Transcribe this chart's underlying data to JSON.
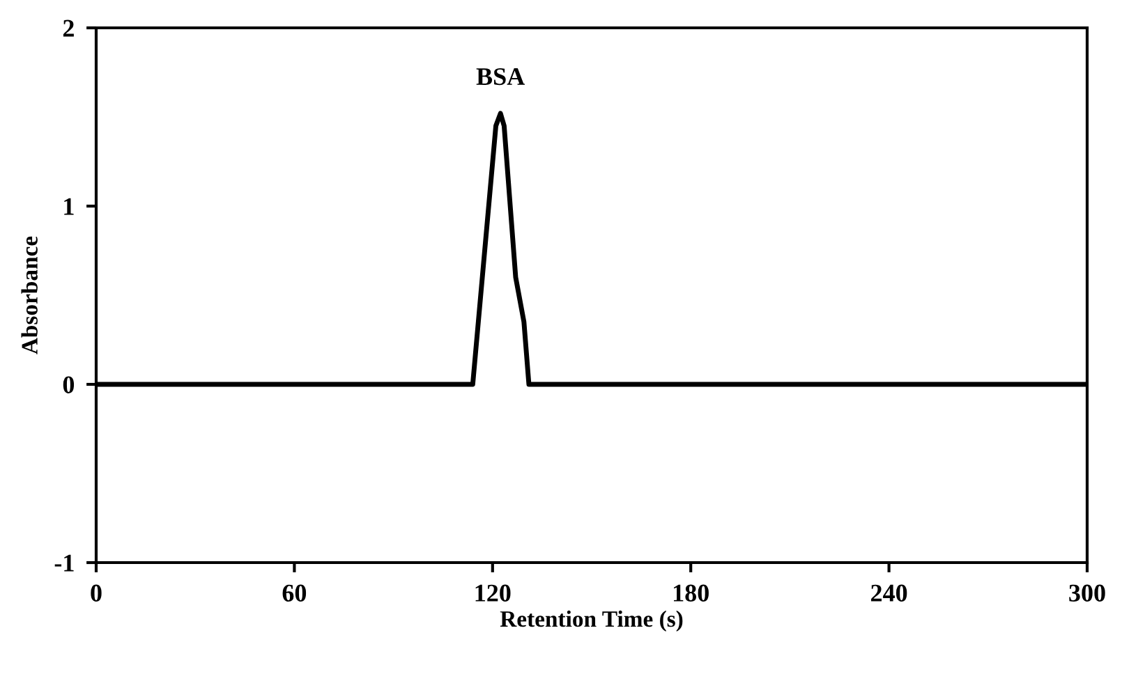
{
  "chart_data": {
    "type": "line",
    "xlabel": "Retention Time (s)",
    "ylabel": "Absorbance",
    "x": [
      0,
      60,
      114,
      121,
      122.4,
      123.5,
      127,
      129.5,
      131,
      180,
      240,
      300
    ],
    "series": [
      {
        "color": "#000000",
        "values": [
          0,
          0,
          0,
          1.45,
          1.52,
          1.45,
          0.6,
          0.35,
          0,
          0,
          0,
          0
        ]
      }
    ],
    "xlim": [
      0,
      300
    ],
    "ylim": [
      -1,
      2
    ],
    "xticks": [
      0,
      60,
      120,
      180,
      240,
      300
    ],
    "yticks": [
      -1,
      0,
      1,
      2
    ],
    "annotations": [
      {
        "text": "BSA",
        "x": 122.4,
        "y": 1.52
      }
    ],
    "grid": false,
    "legend": false,
    "marker": "none",
    "line_style": "solid"
  }
}
